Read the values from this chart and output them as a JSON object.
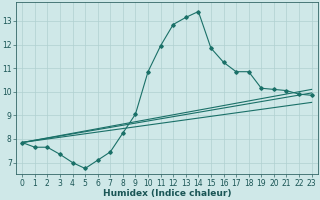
{
  "xlabel": "Humidex (Indice chaleur)",
  "bg_color": "#cfe8e8",
  "grid_color": "#b0d0d0",
  "line_color": "#1a7068",
  "xlim": [
    -0.5,
    23.5
  ],
  "ylim": [
    6.5,
    13.8
  ],
  "xticks": [
    0,
    1,
    2,
    3,
    4,
    5,
    6,
    7,
    8,
    9,
    10,
    11,
    12,
    13,
    14,
    15,
    16,
    17,
    18,
    19,
    20,
    21,
    22,
    23
  ],
  "yticks": [
    7,
    8,
    9,
    10,
    11,
    12,
    13
  ],
  "line1_x": [
    0,
    1,
    2,
    3,
    4,
    5,
    6,
    7,
    8,
    9,
    10,
    11,
    12,
    13,
    14,
    15,
    16,
    17,
    18,
    19,
    20,
    21,
    22,
    23
  ],
  "line1_y": [
    7.85,
    7.65,
    7.65,
    7.35,
    7.0,
    6.75,
    7.1,
    7.45,
    8.25,
    9.05,
    10.85,
    11.95,
    12.85,
    13.15,
    13.4,
    11.85,
    11.25,
    10.85,
    10.85,
    10.15,
    10.1,
    10.05,
    9.9,
    9.85
  ],
  "line2_x": [
    0,
    23
  ],
  "line2_y": [
    7.85,
    10.1
  ],
  "line3_x": [
    0,
    23
  ],
  "line3_y": [
    7.85,
    9.95
  ],
  "line4_x": [
    0,
    23
  ],
  "line4_y": [
    7.85,
    9.55
  ]
}
